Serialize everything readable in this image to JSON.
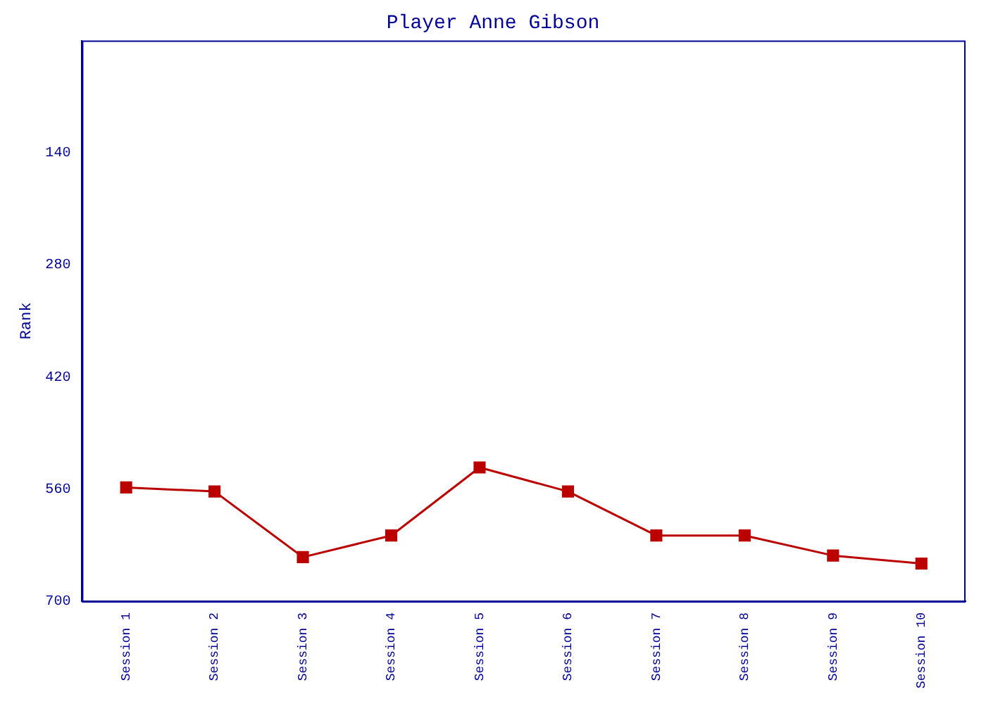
{
  "chart_data": {
    "type": "line",
    "title": "Player Anne Gibson",
    "ylabel": "Rank",
    "categories": [
      "Session 1",
      "Session 2",
      "Session 3",
      "Session 4",
      "Session 5",
      "Session 6",
      "Session 7",
      "Session 8",
      "Session 9",
      "Session 10"
    ],
    "series": [
      {
        "color": "#bb0000",
        "values": [
          558,
          563,
          645,
          618,
          533,
          563,
          618,
          618,
          643,
          653
        ]
      }
    ],
    "ylim": [
      700,
      0
    ],
    "yticks": [
      140,
      280,
      420,
      560,
      700
    ],
    "grid": false,
    "legend": false,
    "marker": "square",
    "line_style": "solid"
  }
}
